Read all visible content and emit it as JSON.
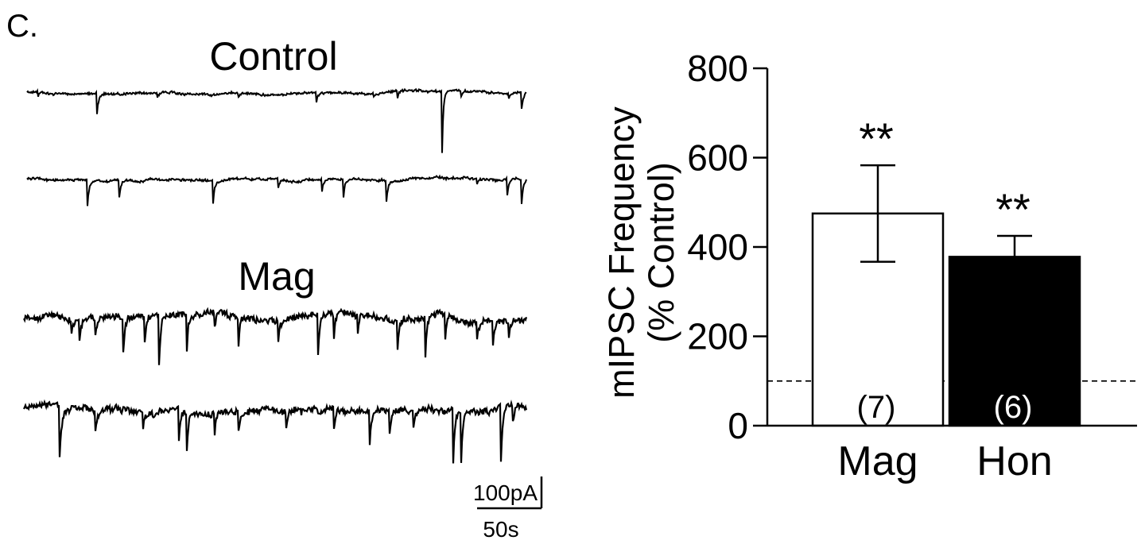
{
  "panel_label": "C.",
  "traces": {
    "control_label": "Control",
    "mag_label": "Mag",
    "scale_bar": {
      "amplitude": "100pA",
      "time": "50s"
    }
  },
  "chart_data": {
    "type": "bar",
    "categories": [
      "Mag",
      "Hon"
    ],
    "values": [
      475,
      378
    ],
    "errors": [
      108,
      47
    ],
    "n_labels": [
      "(7)",
      "(6)"
    ],
    "significance": [
      "**",
      "**"
    ],
    "bar_fill": [
      "#ffffff",
      "#000000"
    ],
    "n_label_colors": [
      "#000000",
      "#ffffff"
    ],
    "ylabel_line1": "mIPSC Frequency",
    "ylabel_line2": "(% Control)",
    "ylim": [
      0,
      800
    ],
    "yticks": [
      0,
      200,
      400,
      600,
      800
    ],
    "reference_line": 100,
    "grid": false
  }
}
